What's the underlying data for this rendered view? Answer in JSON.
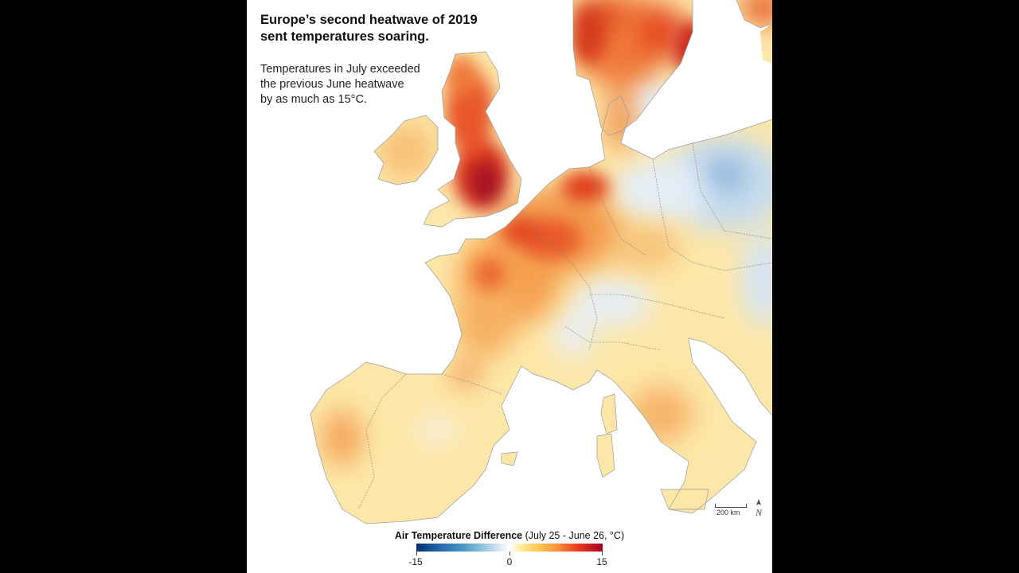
{
  "title": {
    "line1": "Europe’s second heatwave of 2019",
    "line2": "sent temperatures soaring."
  },
  "subtitle": {
    "line1": "Temperatures in July exceeded",
    "line2": "the previous June heatwave",
    "line3": "by as much as 15°C."
  },
  "map": {
    "region": "Western Europe",
    "scale_label": "200 km",
    "north_symbol": "N",
    "north_icon": "north-arrow-icon"
  },
  "legend": {
    "title_bold": "Air Temperature Difference",
    "title_rest": " (July 25 - June 26, °C)",
    "min": -15,
    "mid": 0,
    "max": 15,
    "tick_labels": [
      "-15",
      "0",
      "15"
    ],
    "colors": {
      "cold": "#08306b",
      "neutral": "#ffffff",
      "warm": "#fd8d3c",
      "hot": "#a50026"
    }
  },
  "colors": {
    "background": "#000000",
    "panel": "#ffffff",
    "sea": "#ffffff",
    "border": "#9a9a9a"
  }
}
